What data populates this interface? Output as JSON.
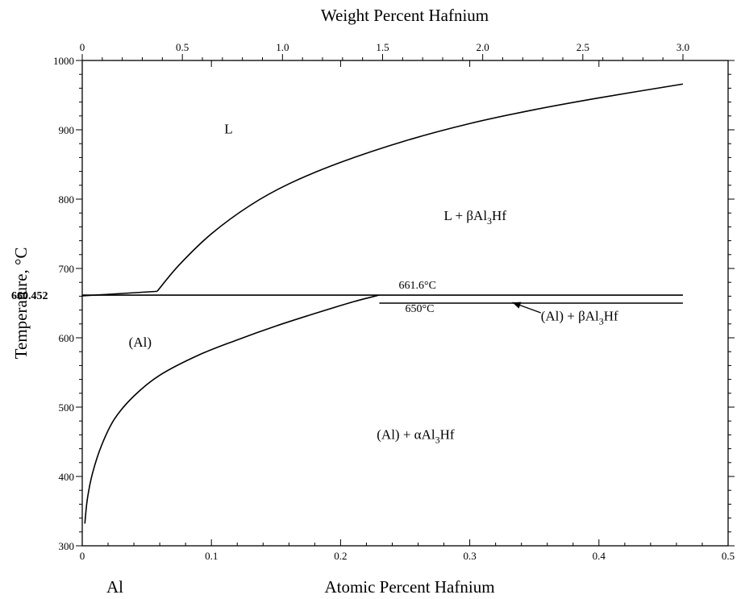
{
  "chart_data": {
    "type": "line",
    "title": "",
    "xlabel": "Atomic Percent Hafnium",
    "x2label": "Weight Percent Hafnium",
    "ylabel": "Temperature, °C",
    "xlim": [
      0,
      0.5
    ],
    "x2lim": [
      0,
      3.0
    ],
    "ylim": [
      300,
      1000
    ],
    "x_ticks": [
      "0",
      "0.1",
      "0.2",
      "0.3",
      "0.4",
      "0.5"
    ],
    "x2_ticks": [
      "0",
      "0.5",
      "1.0",
      "1.5",
      "2.0",
      "2.5",
      "3.0"
    ],
    "y_ticks": [
      "300",
      "400",
      "500",
      "600",
      "700",
      "800",
      "900",
      "1000"
    ],
    "grid": false,
    "element_label": "Al",
    "melting_point_label": "660.452",
    "melting_point": 660.452,
    "lines": [
      {
        "name": "liquidus",
        "x": [
          0.058,
          0.075,
          0.1,
          0.13,
          0.16,
          0.2,
          0.25,
          0.3,
          0.35,
          0.4,
          0.465
        ],
        "y": [
          667,
          705,
          750,
          791,
          822,
          853,
          884,
          909,
          929,
          946,
          966
        ]
      },
      {
        "name": "solvus",
        "x": [
          0.002,
          0.004,
          0.008,
          0.015,
          0.025,
          0.04,
          0.06,
          0.09,
          0.12,
          0.15,
          0.18,
          0.21,
          0.23
        ],
        "y": [
          332,
          368,
          405,
          445,
          483,
          516,
          546,
          575,
          597,
          617,
          635,
          652,
          661.6
        ]
      },
      {
        "name": "peritectic-isotherm",
        "x": [
          0,
          0.465
        ],
        "y": [
          661.6,
          661.6
        ]
      },
      {
        "name": "lower-isotherm",
        "x": [
          0.23,
          0.465
        ],
        "y": [
          650,
          650
        ]
      },
      {
        "name": "melting-segment",
        "x": [
          0,
          0.058
        ],
        "y": [
          660.452,
          667
        ]
      }
    ],
    "annotations": [
      {
        "text": "661.6°C",
        "x": 0.245,
        "y": 671
      },
      {
        "text": "650°C",
        "x": 0.25,
        "y": 637
      },
      {
        "text": "L",
        "x": 0.11,
        "y": 895
      }
    ],
    "regions": [
      {
        "name": "L",
        "text": "L",
        "x": 0.11,
        "y": 895
      },
      {
        "name": "L+beta",
        "prefix": "L + ",
        "phase": "β",
        "formula_a": "Al",
        "subscript": "3",
        "formula_b": "Hf",
        "x": 0.28,
        "y": 770
      },
      {
        "name": "Al-plus-beta",
        "prefix": "(Al) + ",
        "phase": "β",
        "formula_a": "Al",
        "subscript": "3",
        "formula_b": "Hf",
        "x": 0.355,
        "y": 625
      },
      {
        "name": "Al-solid",
        "text": "(Al)",
        "x": 0.036,
        "y": 587
      },
      {
        "name": "Al-plus-alpha",
        "prefix": "(Al) + ",
        "phase": "α",
        "formula_a": "Al",
        "subscript": "3",
        "formula_b": "Hf",
        "x": 0.228,
        "y": 454
      }
    ],
    "arrow": {
      "from": [
        0.355,
        636
      ],
      "to": [
        0.333,
        651
      ]
    }
  }
}
